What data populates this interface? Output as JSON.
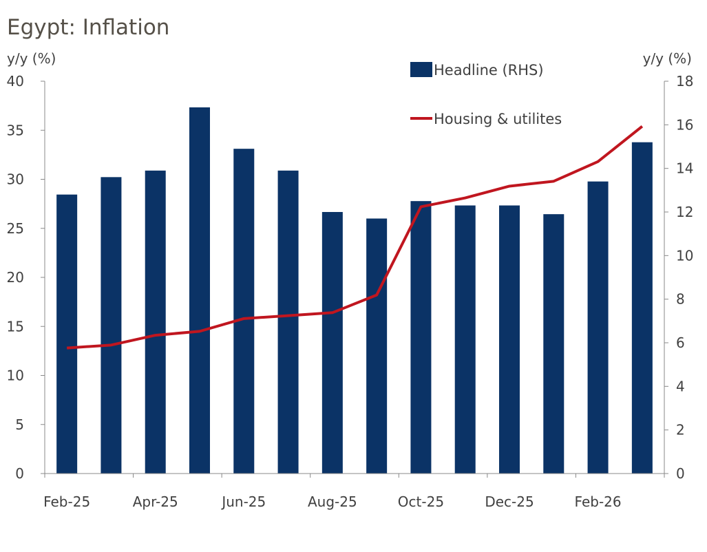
{
  "chart_data": {
    "type": "bar+line",
    "title": "Egypt: Inflation",
    "left_axis_label": "y/y (%)",
    "right_axis_label": "y/y (%)",
    "categories": [
      "Feb-25",
      "Mar-25",
      "Apr-25",
      "May-25",
      "Jun-25",
      "Jul-25",
      "Aug-25",
      "Sep-25",
      "Oct-25",
      "Nov-25",
      "Dec-25",
      "Jan-26",
      "Feb-26",
      "Mar-26"
    ],
    "x_tick_labels": [
      "Feb-25",
      "Apr-25",
      "Jun-25",
      "Aug-25",
      "Oct-25",
      "Dec-25",
      "Feb-26"
    ],
    "ylim_left": [
      0,
      40
    ],
    "yticks_left": [
      0,
      5,
      10,
      15,
      20,
      25,
      30,
      35,
      40
    ],
    "ylim_right": [
      0,
      18
    ],
    "yticks_right": [
      0,
      2,
      4,
      6,
      8,
      10,
      12,
      14,
      16,
      18
    ],
    "legend_position": "top-center",
    "series": [
      {
        "name": "Headline (RHS)",
        "type": "bar",
        "axis": "right",
        "color": "#0b3366",
        "values": [
          12.8,
          13.6,
          13.9,
          16.8,
          14.9,
          13.9,
          12.0,
          11.7,
          12.5,
          12.3,
          12.3,
          11.9,
          13.4,
          15.2
        ]
      },
      {
        "name": "Housing & utilites",
        "type": "line",
        "axis": "left",
        "color": "#c0161f",
        "values": [
          12.8,
          13.1,
          14.1,
          14.5,
          15.8,
          16.1,
          16.4,
          18.2,
          27.2,
          28.1,
          29.3,
          29.8,
          31.8,
          35.4
        ]
      }
    ]
  }
}
